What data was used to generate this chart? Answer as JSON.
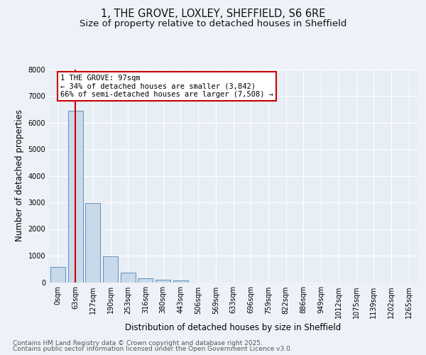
{
  "title_line1": "1, THE GROVE, LOXLEY, SHEFFIELD, S6 6RE",
  "title_line2": "Size of property relative to detached houses in Sheffield",
  "xlabel": "Distribution of detached houses by size in Sheffield",
  "ylabel": "Number of detached properties",
  "bin_labels": [
    "0sqm",
    "63sqm",
    "127sqm",
    "190sqm",
    "253sqm",
    "316sqm",
    "380sqm",
    "443sqm",
    "506sqm",
    "569sqm",
    "633sqm",
    "696sqm",
    "759sqm",
    "822sqm",
    "886sqm",
    "949sqm",
    "1012sqm",
    "1075sqm",
    "1139sqm",
    "1202sqm",
    "1265sqm"
  ],
  "bar_values": [
    570,
    6450,
    2980,
    970,
    350,
    155,
    100,
    65,
    0,
    0,
    0,
    0,
    0,
    0,
    0,
    0,
    0,
    0,
    0,
    0,
    0
  ],
  "bar_color": "#c8d9ea",
  "bar_edge_color": "#6090bb",
  "vline_x_bin": 1,
  "vline_color": "#cc0000",
  "annotation_text": "1 THE GROVE: 97sqm\n← 34% of detached houses are smaller (3,842)\n66% of semi-detached houses are larger (7,508) →",
  "annotation_box_color": "#cc0000",
  "ylim": [
    0,
    8000
  ],
  "yticks": [
    0,
    1000,
    2000,
    3000,
    4000,
    5000,
    6000,
    7000,
    8000
  ],
  "background_color": "#eef2f8",
  "plot_background": "#e8eef5",
  "footer_line1": "Contains HM Land Registry data © Crown copyright and database right 2025.",
  "footer_line2": "Contains public sector information licensed under the Open Government Licence v3.0.",
  "title_fontsize": 10.5,
  "subtitle_fontsize": 9.5,
  "axis_label_fontsize": 8.5,
  "tick_fontsize": 7,
  "footer_fontsize": 6.5,
  "annotation_fontsize": 7.5
}
